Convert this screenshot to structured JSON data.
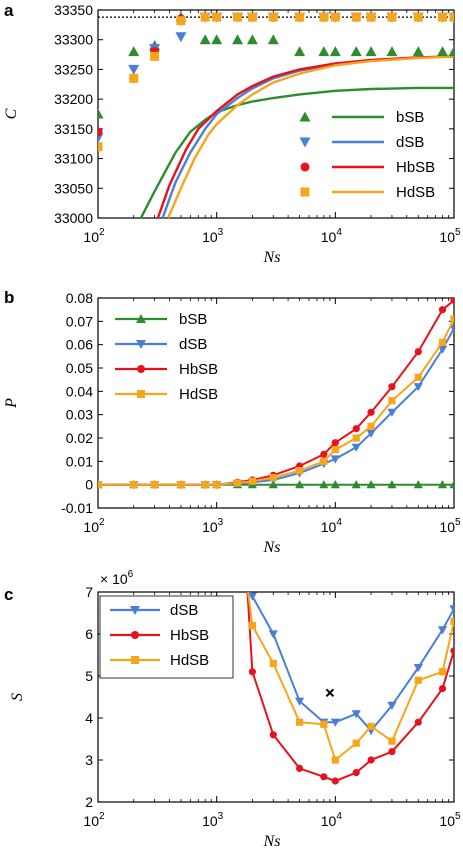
{
  "colors": {
    "bSB": "#2e8b2e",
    "dSB": "#4a7fd8",
    "HbSB": "#e8121d",
    "HdSB": "#f7a51a"
  },
  "chart_data": [
    {
      "panel": "a",
      "type": "line+scatter",
      "xscale": "log",
      "xlim": [
        100,
        100000
      ],
      "ylim": [
        33000,
        33350
      ],
      "ylabel": "C",
      "xlabel": "Ns",
      "yticks": [
        "33000",
        "33050",
        "33100",
        "33150",
        "33200",
        "33250",
        "33300",
        "33350"
      ],
      "xticks": [
        "10",
        "10",
        "10",
        "10"
      ],
      "xtick_exponents": [
        "2",
        "3",
        "4",
        "5"
      ],
      "reference_line": 33338,
      "legend": [
        {
          "name": "bSB",
          "marker": "triangle-up"
        },
        {
          "name": "dSB",
          "marker": "triangle-down"
        },
        {
          "name": "HbSB",
          "marker": "circle"
        },
        {
          "name": "HdSB",
          "marker": "square"
        }
      ],
      "scatter": [
        {
          "name": "bSB",
          "marker": "triangle-up",
          "x": [
            100,
            200,
            300,
            500,
            800,
            1000,
            1500,
            2000,
            3000,
            5000,
            8000,
            10000,
            15000,
            20000,
            30000,
            50000,
            80000,
            100000
          ],
          "y": [
            33175,
            33280,
            33290,
            33338,
            33300,
            33300,
            33300,
            33300,
            33300,
            33280,
            33280,
            33280,
            33280,
            33280,
            33280,
            33280,
            33280,
            33280
          ]
        },
        {
          "name": "dSB",
          "marker": "triangle-down",
          "x": [
            100,
            200,
            300,
            500,
            800,
            1000,
            1500,
            2000,
            3000,
            5000,
            8000,
            10000,
            15000,
            20000,
            30000,
            50000,
            80000,
            100000
          ],
          "y": [
            33135,
            33250,
            33285,
            33305,
            33338,
            33338,
            33338,
            33338,
            33338,
            33338,
            33338,
            33338,
            33338,
            33338,
            33338,
            33338,
            33338,
            33338
          ]
        },
        {
          "name": "HbSB",
          "marker": "circle",
          "x": [
            100,
            200,
            300,
            500,
            800,
            1000,
            1500,
            2000,
            3000,
            5000,
            8000,
            10000,
            15000,
            20000,
            30000,
            50000,
            80000,
            100000
          ],
          "y": [
            33145,
            33235,
            33280,
            33335,
            33338,
            33338,
            33338,
            33338,
            33338,
            33338,
            33338,
            33338,
            33338,
            33338,
            33338,
            33338,
            33338,
            33338
          ]
        },
        {
          "name": "HdSB",
          "marker": "square",
          "x": [
            100,
            200,
            300,
            500,
            800,
            1000,
            1500,
            2000,
            3000,
            5000,
            8000,
            10000,
            15000,
            20000,
            30000,
            50000,
            80000,
            100000
          ],
          "y": [
            33120,
            33235,
            33272,
            33332,
            33338,
            33338,
            33338,
            33338,
            33338,
            33338,
            33338,
            33338,
            33338,
            33338,
            33338,
            33338,
            33338,
            33338
          ]
        }
      ],
      "lines": [
        {
          "name": "bSB",
          "x": [
            230,
            300,
            450,
            600,
            800,
            1000,
            1500,
            2000,
            3000,
            5000,
            10000,
            20000,
            50000,
            100000
          ],
          "y": [
            33000,
            33045,
            33110,
            33145,
            33165,
            33178,
            33190,
            33196,
            33202,
            33208,
            33214,
            33217,
            33219,
            33219
          ]
        },
        {
          "name": "dSB",
          "x": [
            350,
            450,
            600,
            800,
            1000,
            1500,
            2000,
            3000,
            5000,
            10000,
            20000,
            50000,
            100000
          ],
          "y": [
            33000,
            33060,
            33110,
            33150,
            33175,
            33202,
            33218,
            33235,
            33248,
            33258,
            33265,
            33270,
            33272
          ]
        },
        {
          "name": "HbSB",
          "x": [
            320,
            400,
            550,
            700,
            1000,
            1500,
            2000,
            3000,
            5000,
            10000,
            20000,
            50000,
            100000
          ],
          "y": [
            33000,
            33055,
            33115,
            33150,
            33180,
            33208,
            33222,
            33238,
            33250,
            33260,
            33266,
            33270,
            33272
          ]
        },
        {
          "name": "HdSB",
          "x": [
            390,
            500,
            650,
            850,
            1000,
            1500,
            2000,
            3000,
            5000,
            10000,
            20000,
            50000,
            100000
          ],
          "y": [
            33000,
            33050,
            33100,
            33140,
            33158,
            33190,
            33208,
            33228,
            33243,
            33257,
            33264,
            33269,
            33272
          ]
        }
      ]
    },
    {
      "panel": "b",
      "type": "line",
      "xscale": "log",
      "xlim": [
        100,
        100000
      ],
      "ylim": [
        -0.01,
        0.08
      ],
      "ylabel": "P",
      "xlabel": "Ns",
      "yticks": [
        "-0.01",
        "0",
        "0.01",
        "0.02",
        "0.03",
        "0.04",
        "0.05",
        "0.06",
        "0.07",
        "0.08"
      ],
      "xticks": [
        "10",
        "10",
        "10",
        "10"
      ],
      "xtick_exponents": [
        "2",
        "3",
        "4",
        "5"
      ],
      "legend": [
        {
          "name": "bSB",
          "marker": "triangle-up"
        },
        {
          "name": "dSB",
          "marker": "triangle-down"
        },
        {
          "name": "HbSB",
          "marker": "circle"
        },
        {
          "name": "HdSB",
          "marker": "square"
        }
      ],
      "series": [
        {
          "name": "bSB",
          "marker": "triangle-up",
          "x": [
            100,
            200,
            300,
            500,
            800,
            1000,
            1500,
            2000,
            3000,
            5000,
            8000,
            10000,
            15000,
            20000,
            30000,
            50000,
            80000,
            100000
          ],
          "y": [
            0,
            0,
            0,
            0,
            0,
            0,
            0,
            0,
            0,
            0,
            0,
            0,
            0,
            0,
            0,
            0,
            0,
            0
          ]
        },
        {
          "name": "dSB",
          "marker": "triangle-down",
          "x": [
            100,
            200,
            300,
            500,
            800,
            1000,
            1500,
            2000,
            3000,
            5000,
            8000,
            10000,
            15000,
            20000,
            30000,
            50000,
            80000,
            100000
          ],
          "y": [
            0,
            0,
            0,
            0,
            0,
            0,
            0.0005,
            0.001,
            0.002,
            0.005,
            0.009,
            0.011,
            0.016,
            0.022,
            0.031,
            0.042,
            0.058,
            0.067
          ]
        },
        {
          "name": "HbSB",
          "marker": "circle",
          "x": [
            100,
            200,
            300,
            500,
            800,
            1000,
            1500,
            2000,
            3000,
            5000,
            8000,
            10000,
            15000,
            20000,
            30000,
            50000,
            80000,
            100000
          ],
          "y": [
            0,
            0,
            0,
            0,
            0,
            0,
            0.001,
            0.002,
            0.004,
            0.008,
            0.013,
            0.018,
            0.024,
            0.031,
            0.042,
            0.057,
            0.075,
            0.079
          ]
        },
        {
          "name": "HdSB",
          "marker": "square",
          "x": [
            100,
            200,
            300,
            500,
            800,
            1000,
            1500,
            2000,
            3000,
            5000,
            8000,
            10000,
            15000,
            20000,
            30000,
            50000,
            80000,
            100000
          ],
          "y": [
            0,
            0,
            0,
            0,
            0,
            0,
            0.0007,
            0.0015,
            0.003,
            0.006,
            0.01,
            0.015,
            0.02,
            0.025,
            0.036,
            0.046,
            0.061,
            0.071
          ]
        }
      ]
    },
    {
      "panel": "c",
      "type": "line",
      "xscale": "log",
      "xlim": [
        100,
        100000
      ],
      "ylim": [
        2,
        7
      ],
      "ylabel": "S",
      "xlabel": "Ns",
      "yscale_label": "× 10",
      "yscale_exponent": "6",
      "yticks": [
        "2",
        "3",
        "4",
        "5",
        "6",
        "7"
      ],
      "xticks": [
        "10",
        "10",
        "10",
        "10"
      ],
      "xtick_exponents": [
        "2",
        "3",
        "4",
        "5"
      ],
      "legend": [
        {
          "name": "dSB",
          "marker": "triangle-down"
        },
        {
          "name": "HbSB",
          "marker": "circle"
        },
        {
          "name": "HdSB",
          "marker": "square"
        }
      ],
      "cross_marker": {
        "x": 9000,
        "y": 4.6
      },
      "series": [
        {
          "name": "dSB",
          "marker": "triangle-down",
          "x": [
            1800,
            2000,
            3000,
            5000,
            8000,
            10000,
            15000,
            20000,
            30000,
            50000,
            80000,
            100000
          ],
          "y": [
            7.2,
            6.9,
            6.0,
            4.4,
            3.9,
            3.9,
            4.1,
            3.7,
            4.3,
            5.2,
            6.1,
            6.6
          ]
        },
        {
          "name": "HbSB",
          "marker": "circle",
          "x": [
            1800,
            2000,
            3000,
            5000,
            8000,
            10000,
            15000,
            20000,
            30000,
            50000,
            80000,
            100000
          ],
          "y": [
            7.2,
            5.1,
            3.6,
            2.8,
            2.6,
            2.5,
            2.7,
            3.0,
            3.2,
            3.9,
            4.7,
            5.6
          ]
        },
        {
          "name": "HdSB",
          "marker": "square",
          "x": [
            1800,
            2000,
            3000,
            5000,
            8000,
            10000,
            15000,
            20000,
            30000,
            50000,
            80000,
            100000
          ],
          "y": [
            7.2,
            6.2,
            5.3,
            3.9,
            3.85,
            3.0,
            3.4,
            3.8,
            3.45,
            4.9,
            5.1,
            6.3
          ]
        }
      ]
    }
  ]
}
